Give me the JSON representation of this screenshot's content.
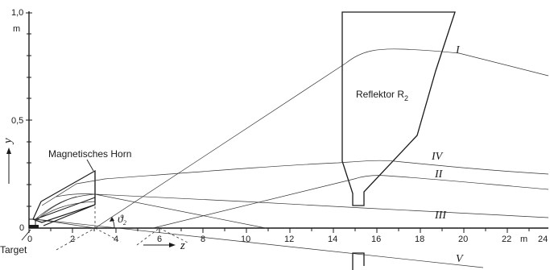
{
  "axes": {
    "y_ticks": [
      "1,0",
      "0,5",
      "0"
    ],
    "y_unit": "m",
    "y_name": "y",
    "z_ticks": [
      "0",
      "2",
      "4",
      "6",
      "8",
      "10",
      "12",
      "14",
      "16",
      "18",
      "20",
      "22",
      "24"
    ],
    "z_unit": "m",
    "z_name": "z"
  },
  "labels": {
    "horn": "Magnetisches Horn",
    "reflector": "Reflektor R",
    "reflector_sub": "2",
    "target": "Target",
    "angle": "ϑ",
    "angle_sub": "2"
  },
  "trajectories": [
    "I",
    "II",
    "III",
    "IV",
    "V"
  ]
}
